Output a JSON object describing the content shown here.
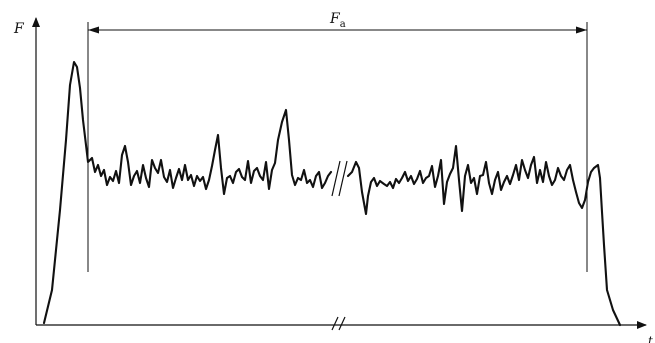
{
  "labels": {
    "y_axis": "F",
    "x_axis": "t",
    "span_main": "F",
    "span_sub": "a"
  },
  "colors": {
    "ink": "#111111",
    "background": "#ffffff"
  }
}
